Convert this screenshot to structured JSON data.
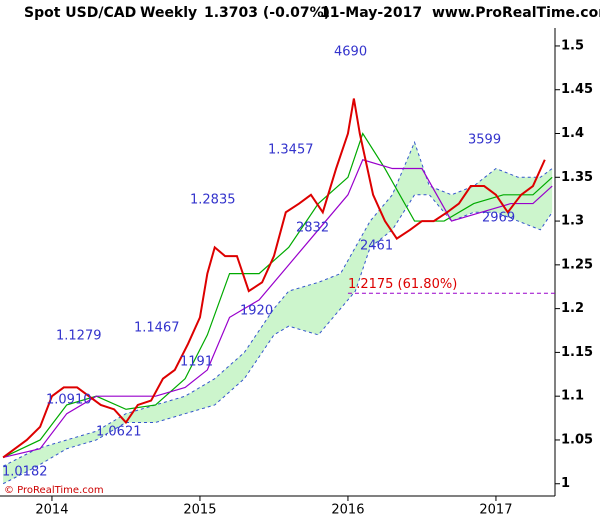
{
  "chart_data": {
    "type": "line",
    "header": [
      "Spot USD/CAD",
      "Weekly",
      "1.3703 (-0.07%)",
      "11-May-2017",
      "www.ProRealTime.com"
    ],
    "footer": "© ProRealTime.com",
    "xlim": [
      2013.649,
      2017.399
    ],
    "xticks": [
      2014,
      2015,
      2016,
      2017
    ],
    "ylim": [
      0.986,
      1.5205
    ],
    "yticks": [
      1,
      1.05,
      1.1,
      1.15,
      1.2,
      1.25,
      1.3,
      1.35,
      1.4,
      1.45,
      1.5
    ],
    "price": {
      "color": "#dd0000",
      "x": [
        2013.67,
        2013.75,
        2013.83,
        2013.92,
        2014.0,
        2014.08,
        2014.17,
        2014.25,
        2014.33,
        2014.42,
        2014.5,
        2014.58,
        2014.67,
        2014.75,
        2014.83,
        2014.92,
        2015.0,
        2015.05,
        2015.1,
        2015.17,
        2015.25,
        2015.33,
        2015.42,
        2015.5,
        2015.58,
        2015.67,
        2015.75,
        2015.83,
        2015.92,
        2016.0,
        2016.04,
        2016.08,
        2016.17,
        2016.25,
        2016.33,
        2016.42,
        2016.5,
        2016.58,
        2016.67,
        2016.75,
        2016.83,
        2016.92,
        2017.0,
        2017.08,
        2017.17,
        2017.25,
        2017.33
      ],
      "values": [
        1.03,
        1.04,
        1.05,
        1.065,
        1.1,
        1.11,
        1.11,
        1.1,
        1.09,
        1.085,
        1.07,
        1.09,
        1.095,
        1.12,
        1.13,
        1.16,
        1.19,
        1.24,
        1.27,
        1.26,
        1.26,
        1.22,
        1.23,
        1.26,
        1.31,
        1.32,
        1.33,
        1.31,
        1.36,
        1.4,
        1.44,
        1.4,
        1.33,
        1.3,
        1.28,
        1.29,
        1.3,
        1.3,
        1.31,
        1.32,
        1.34,
        1.34,
        1.33,
        1.31,
        1.33,
        1.34,
        1.37
      ]
    },
    "averages": [
      {
        "color": "#00aa00",
        "x": [
          2013.67,
          2013.92,
          2014.1,
          2014.3,
          2014.5,
          2014.7,
          2014.9,
          2015.05,
          2015.2,
          2015.4,
          2015.6,
          2015.8,
          2016.0,
          2016.1,
          2016.25,
          2016.45,
          2016.65,
          2016.85,
          2017.05,
          2017.25,
          2017.38
        ],
        "values": [
          1.03,
          1.05,
          1.09,
          1.1,
          1.085,
          1.09,
          1.12,
          1.17,
          1.24,
          1.24,
          1.27,
          1.32,
          1.35,
          1.4,
          1.36,
          1.3,
          1.3,
          1.32,
          1.33,
          1.33,
          1.35
        ]
      },
      {
        "color": "#9900cc",
        "x": [
          2013.67,
          2013.92,
          2014.1,
          2014.3,
          2014.5,
          2014.7,
          2014.9,
          2015.05,
          2015.2,
          2015.4,
          2015.6,
          2015.8,
          2016.0,
          2016.1,
          2016.3,
          2016.5,
          2016.7,
          2016.9,
          2017.1,
          2017.25,
          2017.38
        ],
        "values": [
          1.03,
          1.04,
          1.08,
          1.1,
          1.1,
          1.1,
          1.11,
          1.13,
          1.19,
          1.21,
          1.25,
          1.29,
          1.33,
          1.37,
          1.36,
          1.36,
          1.3,
          1.31,
          1.32,
          1.32,
          1.34
        ]
      }
    ],
    "cloud": {
      "color": "#ccf5cc",
      "edge": "#3355cc",
      "x": [
        2013.67,
        2013.9,
        2014.1,
        2014.3,
        2014.5,
        2014.7,
        2014.9,
        2015.1,
        2015.3,
        2015.5,
        2015.6,
        2015.8,
        2015.95,
        2016.05,
        2016.15,
        2016.3,
        2016.45,
        2016.55,
        2016.7,
        2016.85,
        2017.0,
        2017.15,
        2017.3,
        2017.38
      ],
      "upper": [
        1.02,
        1.04,
        1.05,
        1.06,
        1.08,
        1.09,
        1.1,
        1.12,
        1.15,
        1.2,
        1.22,
        1.23,
        1.24,
        1.27,
        1.3,
        1.33,
        1.39,
        1.34,
        1.33,
        1.34,
        1.36,
        1.35,
        1.35,
        1.36
      ],
      "lower": [
        1.0,
        1.02,
        1.04,
        1.05,
        1.07,
        1.07,
        1.08,
        1.09,
        1.12,
        1.17,
        1.18,
        1.17,
        1.2,
        1.22,
        1.27,
        1.29,
        1.33,
        1.33,
        1.3,
        1.31,
        1.31,
        1.3,
        1.29,
        1.31
      ]
    },
    "fib_level": {
      "value": 1.2175,
      "label": "1.2175 (61.80%)",
      "color": "#9900cc"
    },
    "annotations": [
      "4690",
      "1.3457",
      "1.2835",
      "2832",
      "1920",
      "2461",
      "3599",
      "2969",
      "1.1279",
      "1.1467",
      "1191",
      "1.0910",
      "1.0621",
      "1.0182"
    ]
  }
}
